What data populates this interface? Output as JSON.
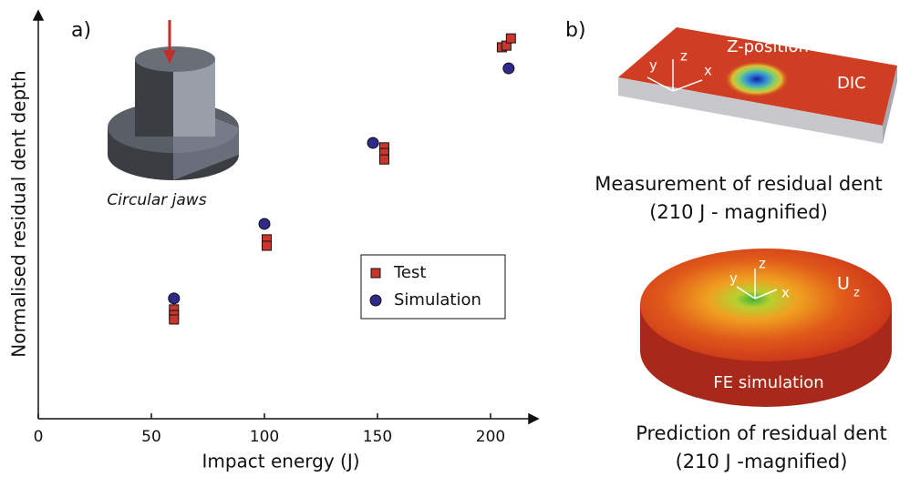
{
  "chart_data": {
    "type": "scatter",
    "panel_label": "a)",
    "x_label": "Impact energy (J)",
    "y_label": "Normalised residual dent depth",
    "inset_label": "Circular jaws",
    "xlim": [
      0,
      220
    ],
    "ylim": [
      0,
      1
    ],
    "xticks": [
      0,
      50,
      100,
      150,
      200
    ],
    "legend": "lower right",
    "series": [
      {
        "name": "Test",
        "color": "#c8372d",
        "marker": "square",
        "x": [
          60,
          60,
          60,
          101,
          101,
          153,
          153,
          153,
          205,
          207,
          209
        ],
        "values": [
          0.27,
          0.256,
          0.245,
          0.443,
          0.427,
          0.67,
          0.656,
          0.64,
          0.917,
          0.921,
          0.939
        ]
      },
      {
        "name": "Simulation",
        "color": "#2e2a8a",
        "marker": "circle",
        "x": [
          60,
          100,
          148,
          208
        ],
        "values": [
          0.297,
          0.481,
          0.681,
          0.865
        ]
      }
    ]
  },
  "panel_b": {
    "label": "b)",
    "dic": {
      "title": "Z-position",
      "tag": "DIC",
      "axes": [
        "y",
        "z",
        "x"
      ],
      "caption": [
        "Measurement of residual dent",
        "(210 J - magnified)"
      ]
    },
    "fe": {
      "axes": [
        "y",
        "z",
        "x"
      ],
      "quantity": "U",
      "subscript": "z",
      "tag": "FE simulation",
      "caption": [
        "Prediction of residual dent",
        "(210 J -magnified)"
      ]
    }
  }
}
